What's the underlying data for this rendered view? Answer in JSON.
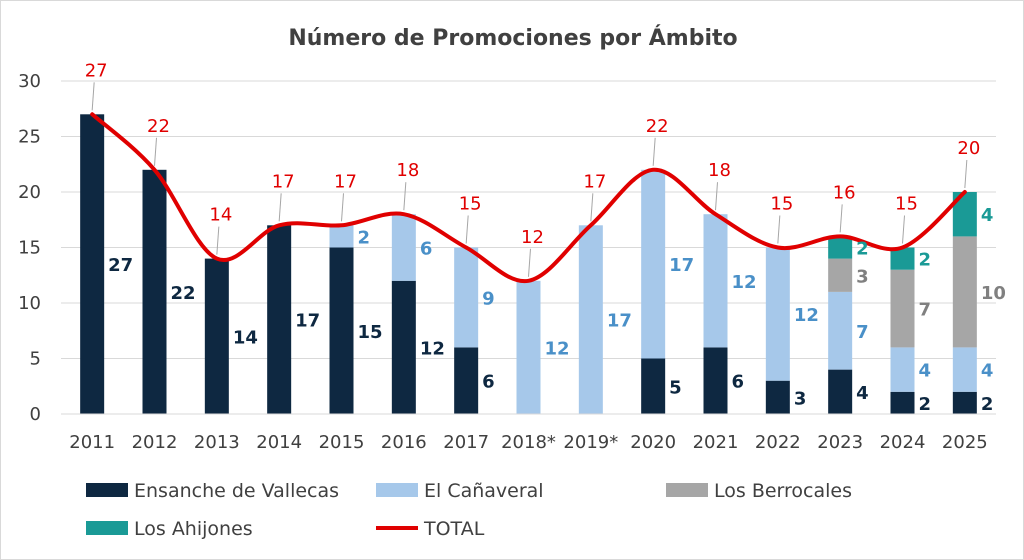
{
  "chart_data": {
    "type": "bar",
    "title": "Número de Promociones por Ámbito",
    "xlabel": "",
    "ylabel": "",
    "ylim": [
      0,
      30
    ],
    "yticks": [
      0,
      5,
      10,
      15,
      20,
      25,
      30
    ],
    "grid": true,
    "legend": "bottom",
    "categories": [
      "2011",
      "2012",
      "2013",
      "2014",
      "2015",
      "2016",
      "2017",
      "2018*",
      "2019*",
      "2020",
      "2021",
      "2022",
      "2023",
      "2024",
      "2025"
    ],
    "series": [
      {
        "name": "Ensanche de Vallecas",
        "color": "#0e2841",
        "values": [
          27,
          22,
          14,
          17,
          15,
          12,
          6,
          0,
          0,
          5,
          6,
          3,
          4,
          2,
          2
        ],
        "labels": [
          "27",
          "22",
          "14",
          "17",
          "15",
          "12",
          "6",
          "",
          "",
          "5",
          "6",
          "3",
          "4",
          "2",
          "2"
        ]
      },
      {
        "name": "El Cañaveral",
        "color": "#a6c8ea",
        "values": [
          0,
          0,
          0,
          0,
          2,
          6,
          9,
          12,
          17,
          17,
          12,
          12,
          7,
          4,
          4
        ],
        "labels": [
          "",
          "",
          "",
          "",
          "2",
          "6",
          "9",
          "12",
          "17",
          "17",
          "12",
          "12",
          "7",
          "4",
          "4"
        ]
      },
      {
        "name": "Los Berrocales",
        "color": "#a6a6a6",
        "values": [
          0,
          0,
          0,
          0,
          0,
          0,
          0,
          0,
          0,
          0,
          0,
          0,
          3,
          7,
          10
        ],
        "labels": [
          "",
          "",
          "",
          "",
          "",
          "",
          "",
          "",
          "",
          "",
          "",
          "",
          "3",
          "7",
          "10"
        ]
      },
      {
        "name": "Los Ahijones",
        "color": "#1a9a96",
        "values": [
          0,
          0,
          0,
          0,
          0,
          0,
          0,
          0,
          0,
          0,
          0,
          0,
          2,
          2,
          4
        ],
        "labels": [
          "",
          "",
          "",
          "",
          "",
          "",
          "",
          "",
          "",
          "",
          "",
          "",
          "2",
          "2",
          "4"
        ]
      }
    ],
    "total": {
      "name": "TOTAL",
      "color": "#e00000",
      "values": [
        27,
        22,
        14,
        17,
        17,
        18,
        15,
        12,
        17,
        22,
        18,
        15,
        16,
        15,
        20
      ]
    }
  }
}
